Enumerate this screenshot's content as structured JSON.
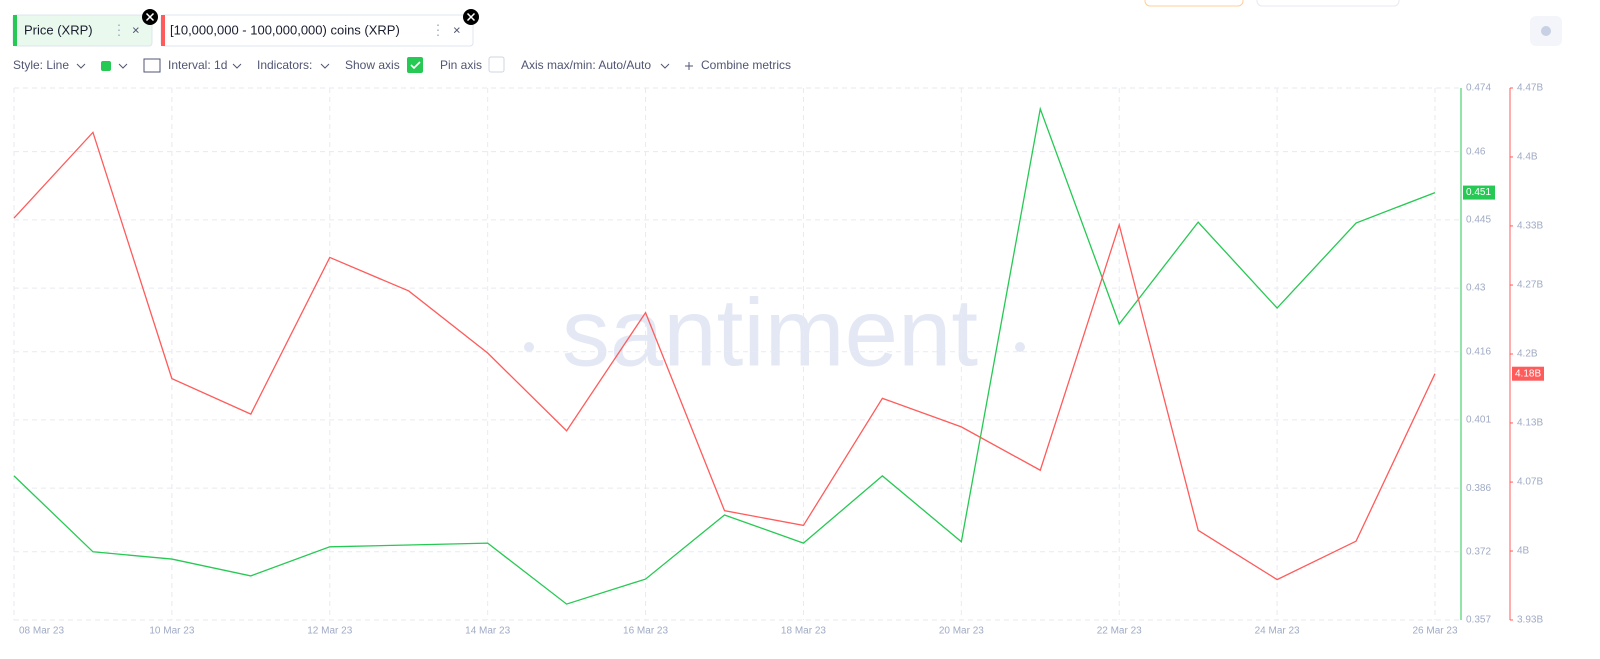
{
  "chart_data": {
    "type": "line",
    "categories": [
      "08 Mar 23",
      null,
      "10 Mar 23",
      null,
      "12 Mar 23",
      null,
      "14 Mar 23",
      null,
      "16 Mar 23",
      null,
      "18 Mar 23",
      null,
      "20 Mar 23",
      null,
      "22 Mar 23",
      null,
      "24 Mar 23",
      null,
      "26 Mar 23"
    ],
    "series": [
      {
        "name": "Price (XRP)",
        "color": "#26c953",
        "values": [
          0.3887,
          0.372,
          0.3704,
          0.3667,
          0.3731,
          0.3735,
          0.3739,
          0.3605,
          0.366,
          0.3801,
          0.3739,
          0.3887,
          0.3742,
          0.4694,
          0.4221,
          0.4445,
          0.4256,
          0.4443,
          0.451
        ],
        "value_labels": [
          null,
          null,
          null,
          null,
          null,
          null,
          null,
          null,
          null,
          null,
          null,
          null,
          null,
          null,
          null,
          null,
          null,
          null,
          "0.451"
        ]
      },
      {
        "name": "[10,000,000 - 100,000,000) coins (XRP)",
        "color": "#ff5b5b",
        "axis": "y2",
        "values": [
          4338000000,
          4425000000,
          4175000000,
          4139000000,
          4298000000,
          4264000000,
          4201000000,
          4122000000,
          4242000000,
          4041000000,
          4026000000,
          4155000000,
          4126000000,
          4082000000,
          4331000000,
          4021000000,
          3971000000,
          4010000000,
          4180000000
        ],
        "value_labels": [
          null,
          null,
          null,
          null,
          null,
          null,
          null,
          null,
          null,
          null,
          null,
          null,
          null,
          null,
          null,
          null,
          null,
          null,
          "4.18B"
        ]
      }
    ],
    "ylim": [
      0.357,
      0.474
    ],
    "yticks": [
      0.474,
      0.46,
      0.445,
      0.43,
      0.416,
      0.401,
      0.386,
      0.372,
      0.357
    ],
    "y2lim": [
      3930000000,
      4470000000
    ],
    "y2ticks": [
      {
        "value": 4470000000,
        "label": "4.47B"
      },
      {
        "value": 4400000000,
        "label": "4.4B"
      },
      {
        "value": 4330000000,
        "label": "4.33B"
      },
      {
        "value": 4270000000,
        "label": "4.27B"
      },
      {
        "value": 4200000000,
        "label": "4.2B"
      },
      {
        "value": 4130000000,
        "label": "4.13B"
      },
      {
        "value": 4070000000,
        "label": "4.07B"
      },
      {
        "value": 4000000000,
        "label": "4B"
      },
      {
        "value": 3930000000,
        "label": "3.93B"
      }
    ],
    "grid": true
  },
  "toolbar": {
    "style": "Style: Line",
    "interval": "Interval: 1d",
    "indicators": "Indicators:",
    "show_axis": "Show axis",
    "pin_axis": "Pin axis",
    "axis_minmax": "Axis max/min: Auto/Auto",
    "combine": "Combine metrics"
  },
  "watermark": "santiment"
}
